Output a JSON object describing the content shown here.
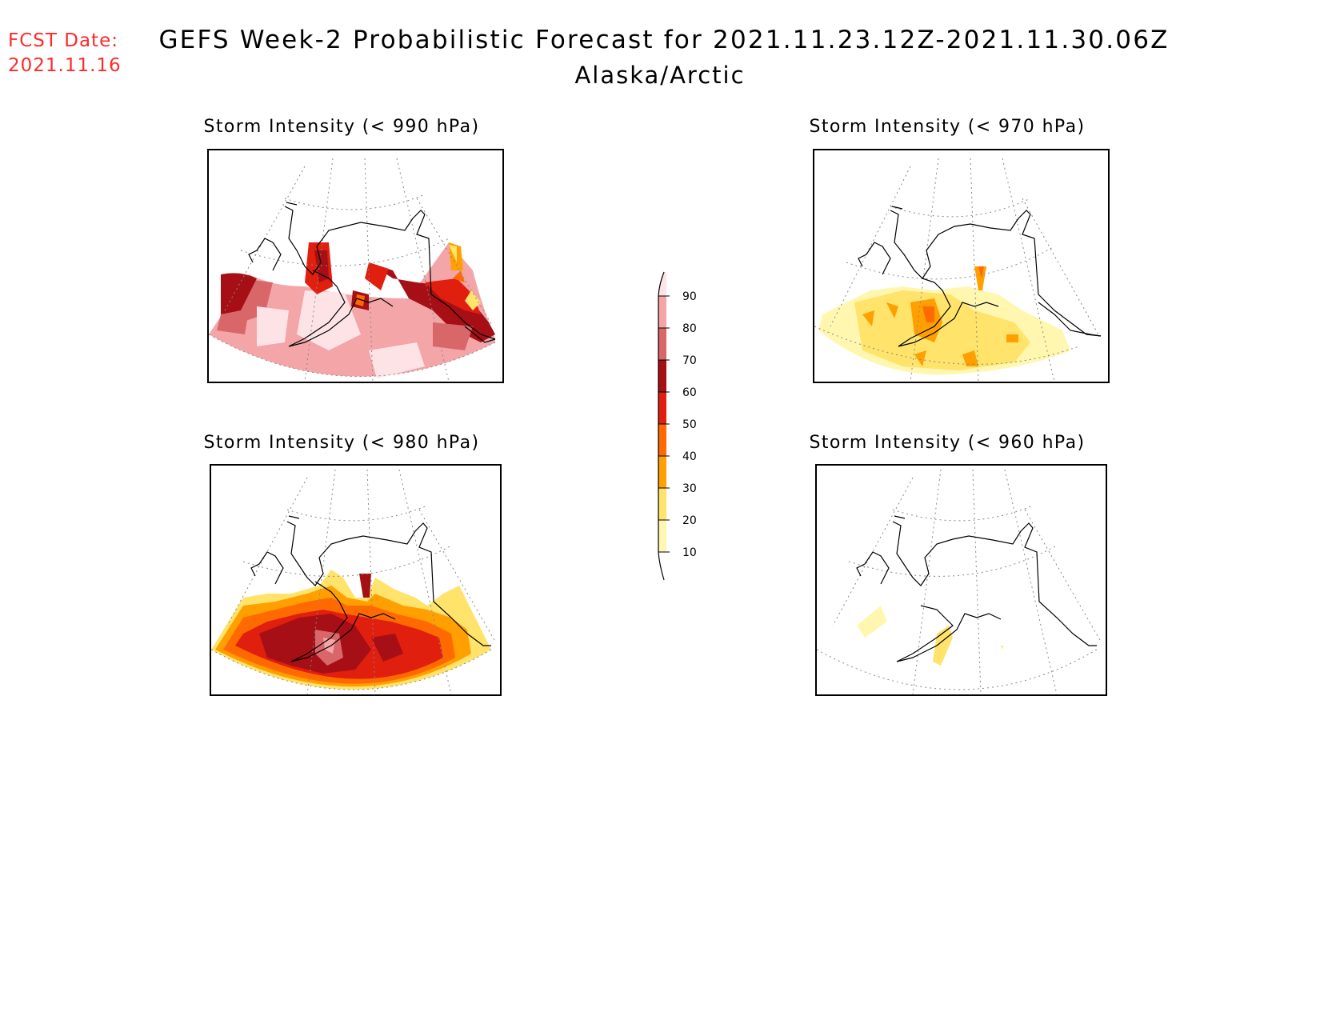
{
  "header": {
    "fcst_label": "FCST Date:",
    "fcst_date": "2021.11.16",
    "title": "GEFS Week-2 Probabilistic Forecast for 2021.11.23.12Z-2021.11.30.06Z",
    "region": "Alaska/Arctic"
  },
  "panels": [
    {
      "title": "Storm Intensity (< 990 hPa)",
      "threshold_hpa": 990
    },
    {
      "title": "Storm Intensity (< 970 hPa)",
      "threshold_hpa": 970
    },
    {
      "title": "Storm Intensity (< 980 hPa)",
      "threshold_hpa": 980
    },
    {
      "title": "Storm Intensity (< 960 hPa)",
      "threshold_hpa": 960
    }
  ],
  "colorbar": {
    "levels": [
      "90",
      "80",
      "70",
      "60",
      "50",
      "40",
      "30",
      "20",
      "10"
    ],
    "colors": [
      "#fde3e6",
      "#f3a5a8",
      "#d9676a",
      "#a50f15",
      "#e01f0e",
      "#ff6a00",
      "#ff9f00",
      "#ffe36a",
      "#fff7b0",
      "#ffffff"
    ]
  }
}
